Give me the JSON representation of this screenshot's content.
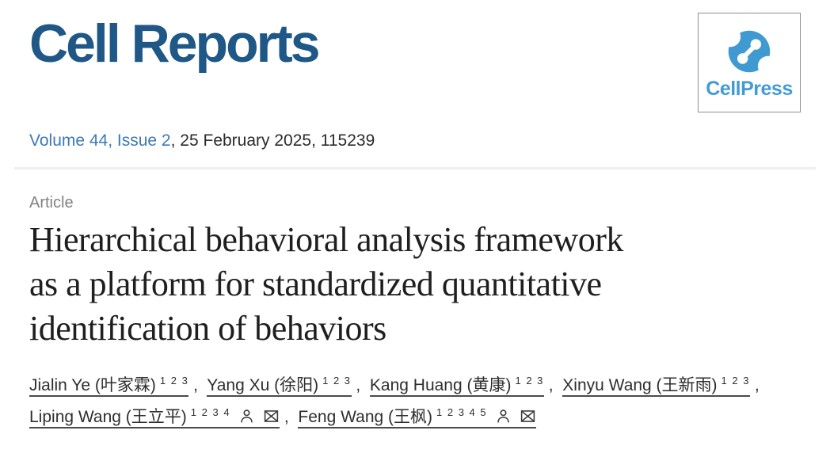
{
  "journal": {
    "logo_text": "Cell Reports",
    "logo_color": "#1f5787",
    "publisher_badge": {
      "label": "CellPress",
      "icon": "cellpress-swirl-icon",
      "brand_blue": "#429bd5"
    }
  },
  "issue_line": {
    "link_text": "Volume 44, Issue 2",
    "rest_text": ", 25 February 2025, 115239",
    "link_color": "#3c79b8"
  },
  "article": {
    "type_label": "Article",
    "title": "Hierarchical behavioral analysis framework as a platform for standardized quantitative identification of behaviors",
    "title_lines": [
      "Hierarchical behavioral analysis framework",
      "as a platform for standardized quantitative",
      "identification of behaviors"
    ]
  },
  "authors": [
    {
      "name": "Jialin Ye (叶家霖)",
      "superscripts": "1 2 3",
      "corresponding": false
    },
    {
      "name": "Yang Xu (徐阳)",
      "superscripts": "1 2 3",
      "corresponding": false
    },
    {
      "name": "Kang Huang (黄康)",
      "superscripts": "1 2 3",
      "corresponding": false
    },
    {
      "name": "Xinyu Wang (王新雨)",
      "superscripts": "1 2 3",
      "corresponding": false
    },
    {
      "name": "Liping Wang (王立平)",
      "superscripts": "1 2 3 4",
      "corresponding": true
    },
    {
      "name": "Feng Wang (王枫)",
      "superscripts": "1 2 3 4 5",
      "corresponding": true
    }
  ],
  "separator": ", "
}
